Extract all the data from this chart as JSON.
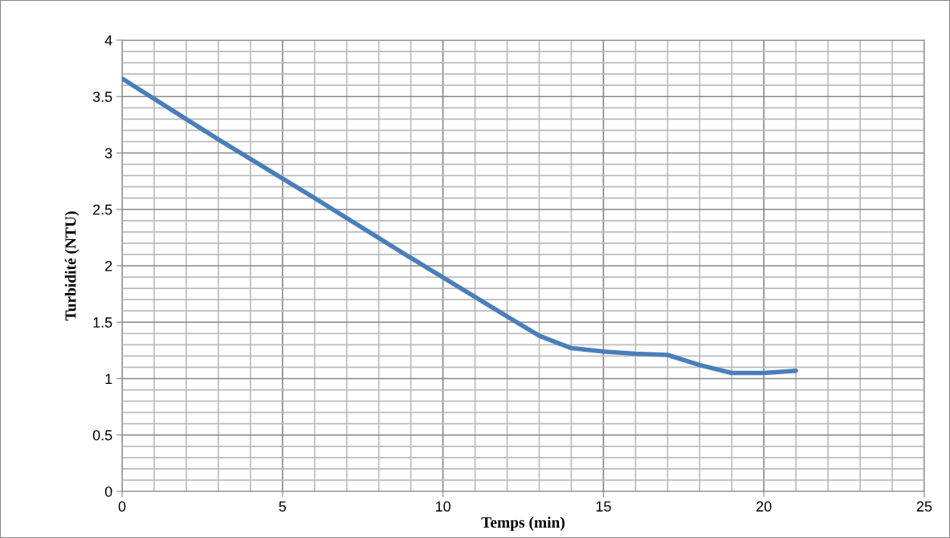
{
  "chart_data": {
    "type": "line",
    "xlabel": "Temps (min)",
    "ylabel": "Turbidité (NTU)",
    "x": [
      0,
      3,
      6,
      9,
      12,
      13,
      14,
      15,
      16,
      17,
      18,
      19,
      20,
      21
    ],
    "series": [
      {
        "color": "#4a7ebb",
        "values": [
          3.66,
          3.12,
          2.6,
          2.07,
          1.55,
          1.38,
          1.27,
          1.24,
          1.22,
          1.21,
          1.12,
          1.05,
          1.05,
          1.07
        ]
      }
    ],
    "xlim": [
      0,
      25
    ],
    "xticks": [
      0,
      5,
      10,
      15,
      20,
      25
    ],
    "ylim": [
      0,
      4
    ],
    "yticks": [
      0,
      0.5,
      1,
      1.5,
      2,
      2.5,
      3,
      3.5,
      4
    ],
    "grid": true,
    "marker": "none",
    "line_style": "solid"
  }
}
